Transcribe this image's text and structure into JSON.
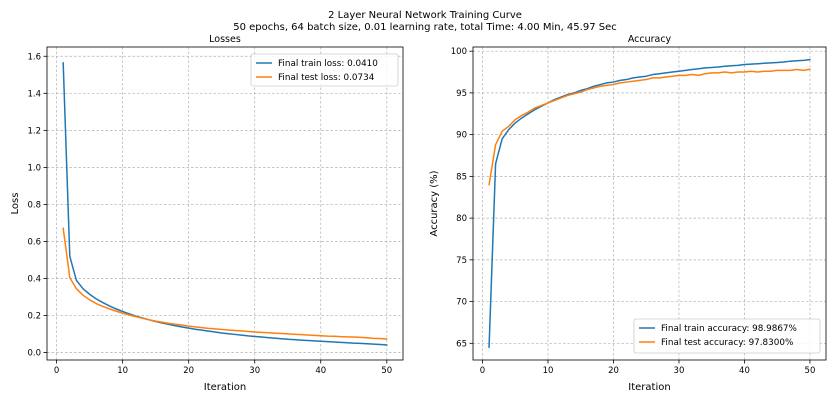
{
  "figure": {
    "suptitle_line1": "2 Layer Neural Network Training Curve",
    "suptitle_line2": "50 epochs, 64 batch size,  0.01 learning rate, total Time: 4.00 Min, 45.97 Sec"
  },
  "chart_data": [
    {
      "type": "line",
      "title": "Losses",
      "xlabel": "Iteration",
      "ylabel": "Loss",
      "xlim": [
        -1.45,
        52.45
      ],
      "ylim": [
        -0.04,
        1.65
      ],
      "xticks": [
        0,
        10,
        20,
        30,
        40,
        50
      ],
      "yticks": [
        0.0,
        0.2,
        0.4,
        0.6,
        0.8,
        1.0,
        1.2,
        1.4,
        1.6
      ],
      "ytick_decimals": 1,
      "grid": true,
      "legend_position": "top-right",
      "x": [
        1,
        2,
        3,
        4,
        5,
        6,
        7,
        8,
        9,
        10,
        11,
        12,
        13,
        14,
        15,
        16,
        17,
        18,
        19,
        20,
        21,
        22,
        23,
        24,
        25,
        26,
        27,
        28,
        29,
        30,
        31,
        32,
        33,
        34,
        35,
        36,
        37,
        38,
        39,
        40,
        41,
        42,
        43,
        44,
        45,
        46,
        47,
        48,
        49,
        50
      ],
      "series": [
        {
          "name": "Final train loss: 0.0410",
          "color": "#1f77b4",
          "values": [
            1.565,
            0.52,
            0.39,
            0.345,
            0.315,
            0.29,
            0.27,
            0.252,
            0.236,
            0.222,
            0.209,
            0.197,
            0.187,
            0.177,
            0.168,
            0.16,
            0.152,
            0.145,
            0.138,
            0.132,
            0.126,
            0.121,
            0.116,
            0.111,
            0.106,
            0.102,
            0.098,
            0.094,
            0.09,
            0.087,
            0.084,
            0.081,
            0.078,
            0.075,
            0.072,
            0.07,
            0.067,
            0.065,
            0.063,
            0.061,
            0.059,
            0.057,
            0.055,
            0.053,
            0.051,
            0.05,
            0.048,
            0.046,
            0.044,
            0.041
          ]
        },
        {
          "name": "Final test loss: 0.0734",
          "color": "#ff7f0e",
          "values": [
            0.672,
            0.405,
            0.345,
            0.31,
            0.285,
            0.265,
            0.249,
            0.236,
            0.224,
            0.213,
            0.203,
            0.194,
            0.185,
            0.177,
            0.17,
            0.164,
            0.158,
            0.153,
            0.148,
            0.143,
            0.139,
            0.135,
            0.131,
            0.128,
            0.125,
            0.122,
            0.119,
            0.117,
            0.114,
            0.111,
            0.109,
            0.107,
            0.105,
            0.103,
            0.101,
            0.099,
            0.097,
            0.095,
            0.093,
            0.091,
            0.089,
            0.088,
            0.086,
            0.085,
            0.084,
            0.082,
            0.08,
            0.077,
            0.076,
            0.0734
          ]
        }
      ]
    },
    {
      "type": "line",
      "title": "Accuracy",
      "xlabel": "Iteration",
      "ylabel": "Accuracy (%)",
      "xlim": [
        -1.45,
        52.45
      ],
      "ylim": [
        63.0,
        100.5
      ],
      "xticks": [
        0,
        10,
        20,
        30,
        40,
        50
      ],
      "yticks": [
        65,
        70,
        75,
        80,
        85,
        90,
        95,
        100
      ],
      "ytick_decimals": 0,
      "grid": true,
      "legend_position": "bottom-right",
      "x": [
        1,
        2,
        3,
        4,
        5,
        6,
        7,
        8,
        9,
        10,
        11,
        12,
        13,
        14,
        15,
        16,
        17,
        18,
        19,
        20,
        21,
        22,
        23,
        24,
        25,
        26,
        27,
        28,
        29,
        30,
        31,
        32,
        33,
        34,
        35,
        36,
        37,
        38,
        39,
        40,
        41,
        42,
        43,
        44,
        45,
        46,
        47,
        48,
        49,
        50
      ],
      "series": [
        {
          "name": "Final train accuracy: 98.9867%",
          "color": "#1f77b4",
          "values": [
            64.5,
            86.5,
            89.5,
            90.6,
            91.4,
            92.0,
            92.5,
            93.0,
            93.4,
            93.8,
            94.2,
            94.5,
            94.8,
            95.0,
            95.3,
            95.5,
            95.8,
            96.0,
            96.2,
            96.3,
            96.5,
            96.6,
            96.8,
            96.9,
            97.0,
            97.2,
            97.3,
            97.4,
            97.5,
            97.6,
            97.7,
            97.8,
            97.9,
            98.0,
            98.05,
            98.1,
            98.2,
            98.25,
            98.3,
            98.4,
            98.45,
            98.5,
            98.55,
            98.6,
            98.65,
            98.7,
            98.8,
            98.85,
            98.9,
            98.99
          ]
        },
        {
          "name": "Final test accuracy: 97.8300%",
          "color": "#ff7f0e",
          "values": [
            84.0,
            88.8,
            90.4,
            91.0,
            91.8,
            92.3,
            92.7,
            93.2,
            93.5,
            93.8,
            94.1,
            94.4,
            94.7,
            94.9,
            95.1,
            95.4,
            95.6,
            95.8,
            95.9,
            96.0,
            96.2,
            96.3,
            96.4,
            96.5,
            96.6,
            96.8,
            96.8,
            96.9,
            97.0,
            97.1,
            97.1,
            97.2,
            97.1,
            97.3,
            97.4,
            97.4,
            97.5,
            97.4,
            97.5,
            97.5,
            97.6,
            97.5,
            97.6,
            97.6,
            97.7,
            97.7,
            97.7,
            97.8,
            97.7,
            97.83
          ]
        }
      ]
    }
  ]
}
